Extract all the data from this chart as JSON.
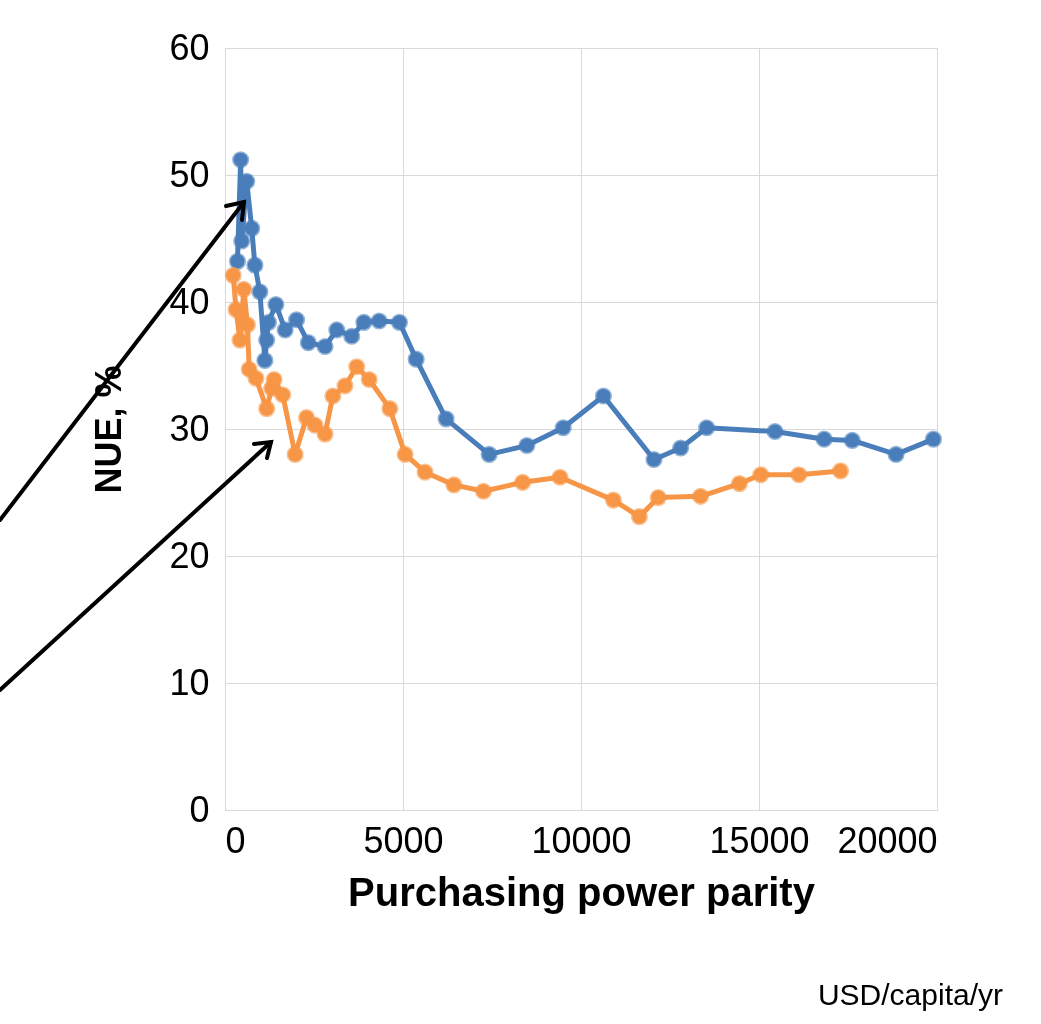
{
  "chart_data": {
    "type": "line",
    "xlabel": "Purchasing power parity",
    "ylabel": "NUE, %",
    "annotations": [
      "USD/capita/yr"
    ],
    "xlim": [
      0,
      20000
    ],
    "xticks": [
      0,
      5000,
      10000,
      15000,
      20000
    ],
    "ylim": [
      0,
      60
    ],
    "yticks": [
      0,
      10,
      20,
      30,
      40,
      50,
      60
    ],
    "grid": true,
    "marker": "circle",
    "line_style": "solid",
    "series": [
      {
        "color": "#4a7ebb",
        "x": [
          350,
          440,
          470,
          610,
          750,
          840,
          980,
          1120,
          1170,
          1220,
          1430,
          1690,
          2010,
          2340,
          2810,
          3140,
          3560,
          3900,
          4330,
          4900,
          5370,
          6210,
          7420,
          8480,
          9500,
          10630,
          12050,
          12800,
          13530,
          15450,
          16830,
          17620,
          18850,
          19900
        ],
        "values": [
          43.2,
          51.2,
          44.8,
          49.5,
          45.8,
          42.9,
          40.8,
          35.4,
          37.0,
          38.4,
          39.8,
          37.8,
          38.6,
          36.8,
          36.5,
          37.8,
          37.3,
          38.4,
          38.5,
          38.4,
          35.5,
          30.8,
          28.0,
          28.7,
          30.1,
          32.6,
          27.6,
          28.5,
          30.1,
          29.8,
          29.2,
          29.1,
          28.0,
          29.2
        ]
      },
      {
        "color": "#f79646",
        "x": [
          230,
          310,
          420,
          530,
          630,
          680,
          870,
          1170,
          1310,
          1380,
          1620,
          1970,
          2290,
          2530,
          2810,
          3030,
          3370,
          3700,
          4050,
          4630,
          5060,
          5620,
          6430,
          7260,
          8360,
          9410,
          10910,
          11640,
          12170,
          13360,
          14450,
          15050,
          16120,
          17290
        ],
        "values": [
          42.1,
          39.4,
          37.0,
          41.0,
          38.2,
          34.7,
          34.0,
          31.6,
          33.2,
          33.9,
          32.7,
          28.0,
          30.9,
          30.3,
          29.6,
          32.6,
          33.4,
          34.9,
          33.9,
          31.6,
          28.0,
          26.6,
          25.6,
          25.1,
          25.8,
          26.2,
          24.4,
          23.1,
          24.6,
          24.7,
          25.7,
          26.4,
          26.4,
          26.7
        ]
      }
    ]
  }
}
